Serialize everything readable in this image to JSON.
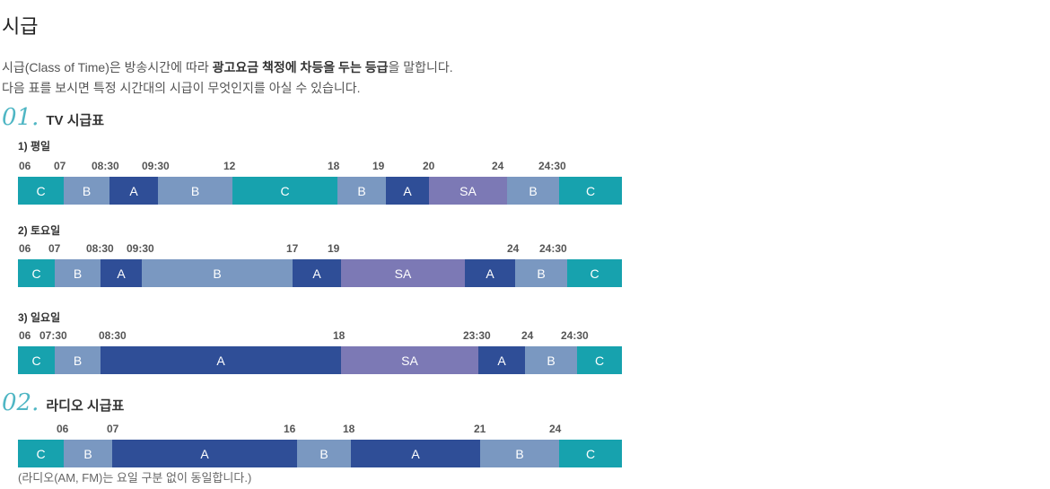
{
  "page_title": "시급",
  "intro": {
    "line1_a": "시급(Class of Time)은 방송시간에 따라 ",
    "line1_b": "광고요금 책정에 차등을 두는 등급",
    "line1_c": "을 말합니다.",
    "line2": "다음 표를 보시면 특정 시간대의 시급이 무엇인지를 아실 수 있습니다."
  },
  "tv": {
    "num": "01.",
    "title": "TV 시급표",
    "schedules": [
      {
        "label": "1) 평일",
        "ticks": [
          "06",
          "07",
          "08:30",
          "09:30",
          "12",
          "18",
          "19",
          "20",
          "24",
          "24:30"
        ],
        "segments": [
          {
            "grade": "C",
            "width": 51
          },
          {
            "grade": "B",
            "width": 51
          },
          {
            "grade": "A",
            "width": 54
          },
          {
            "grade": "B",
            "width": 83
          },
          {
            "grade": "C",
            "width": 117
          },
          {
            "grade": "B",
            "width": 54
          },
          {
            "grade": "A",
            "width": 48
          },
          {
            "grade": "SA",
            "width": 87
          },
          {
            "grade": "B",
            "width": 58
          },
          {
            "grade": "C",
            "width": 70
          }
        ]
      },
      {
        "label": "2) 토요일",
        "ticks": [
          "06",
          "07",
          "08:30",
          "09:30",
          "17",
          "19",
          "24",
          "24:30"
        ],
        "segments": [
          {
            "grade": "C",
            "width": 41
          },
          {
            "grade": "B",
            "width": 51
          },
          {
            "grade": "A",
            "width": 46
          },
          {
            "grade": "B",
            "width": 168
          },
          {
            "grade": "A",
            "width": 54
          },
          {
            "grade": "SA",
            "width": 138
          },
          {
            "grade": "A",
            "width": 56
          },
          {
            "grade": "B",
            "width": 58
          },
          {
            "grade": "C",
            "width": 61
          }
        ]
      },
      {
        "label": "3) 일요일",
        "ticks": [
          "06",
          "07:30",
          "08:30",
          "18",
          "23:30",
          "24",
          "24:30"
        ],
        "segments": [
          {
            "grade": "C",
            "width": 41
          },
          {
            "grade": "B",
            "width": 51
          },
          {
            "grade": "A",
            "width": 268
          },
          {
            "grade": "SA",
            "width": 153
          },
          {
            "grade": "A",
            "width": 52
          },
          {
            "grade": "B",
            "width": 58
          },
          {
            "grade": "C",
            "width": 50
          }
        ]
      }
    ]
  },
  "radio": {
    "num": "02.",
    "title": "라디오 시급표",
    "ticks": [
      "06",
      "07",
      "16",
      "18",
      "21",
      "24"
    ],
    "segments": [
      {
        "grade": "C",
        "width": 51
      },
      {
        "grade": "B",
        "width": 54
      },
      {
        "grade": "A",
        "width": 206
      },
      {
        "grade": "B",
        "width": 60
      },
      {
        "grade": "A",
        "width": 144
      },
      {
        "grade": "B",
        "width": 88
      },
      {
        "grade": "C",
        "width": 70
      }
    ],
    "note": "(라디오(AM, FM)는 요일 구분 없이 동일합니다.)"
  },
  "colors": {
    "C": "#17a2ae",
    "B": "#7a98c1",
    "A": "#2f4e97",
    "SA": "#7c79b5"
  }
}
